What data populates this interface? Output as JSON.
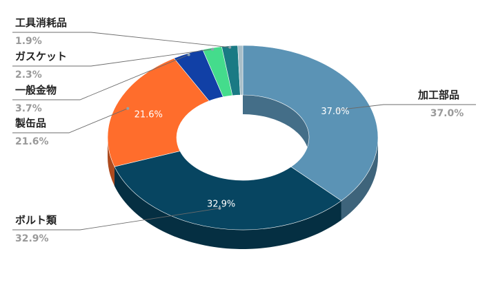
{
  "chart_data": {
    "type": "pie",
    "style": "3d-donut",
    "title": "",
    "categories": [
      "加工部品",
      "ボルト類",
      "製缶品",
      "一般金物",
      "ガスケット",
      "工具消耗品"
    ],
    "values": [
      37.0,
      32.9,
      21.6,
      3.7,
      2.3,
      1.9
    ],
    "label_values": [
      "37.0%",
      "32.9%",
      "21.6%",
      "3.7%",
      "2.3%",
      "1.9%"
    ],
    "inside_labels": [
      "37.0%",
      "32.9%",
      "21.6%",
      "",
      "",
      ""
    ],
    "colors": [
      "#5b93b5",
      "#074561",
      "#ff6d2c",
      "#1140a6",
      "#44dc8c",
      "#1a7a84",
      "#a8bec8"
    ],
    "legend": "none"
  }
}
